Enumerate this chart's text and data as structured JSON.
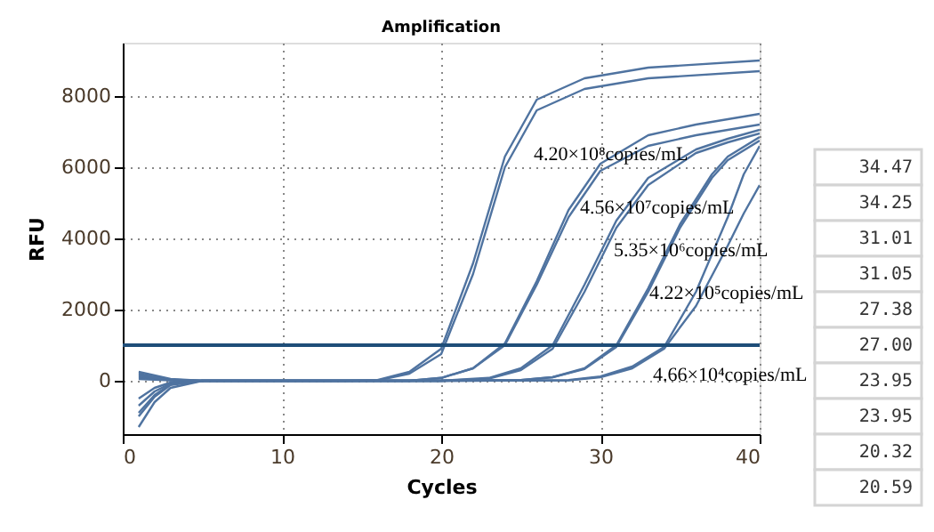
{
  "chart_data": {
    "type": "line",
    "title": "Amplification",
    "xlabel": "Cycles",
    "ylabel": "RFU",
    "xlim": [
      0,
      40
    ],
    "xticks": [
      0,
      10,
      20,
      30,
      40
    ],
    "ylim": [
      -1500,
      9500
    ],
    "yticks": [
      0,
      2000,
      4000,
      6000,
      8000
    ],
    "grid": true,
    "legend": false,
    "line_style": "solid",
    "marker": "none",
    "series": [
      {
        "color": "#4f73a0",
        "x": [
          1,
          2,
          3,
          5,
          10,
          14,
          16,
          18,
          20,
          22,
          24,
          26,
          29,
          33,
          40
        ],
        "values": [
          -1300,
          -600,
          -200,
          0,
          0,
          0,
          20,
          250,
          900,
          3300,
          6300,
          7900,
          8500,
          8800,
          9000
        ]
      },
      {
        "color": "#4f73a0",
        "x": [
          1,
          2,
          3,
          5,
          10,
          14,
          16,
          18,
          20,
          22,
          24,
          26,
          29,
          33,
          40
        ],
        "values": [
          250,
          150,
          50,
          0,
          0,
          0,
          10,
          200,
          750,
          3000,
          6000,
          7600,
          8200,
          8500,
          8700
        ]
      },
      {
        "color": "#4f73a0",
        "x": [
          1,
          2,
          3,
          5,
          10,
          18,
          20,
          22,
          24,
          26,
          28,
          30,
          33,
          36,
          40
        ],
        "values": [
          200,
          100,
          30,
          0,
          0,
          0,
          80,
          350,
          1050,
          2800,
          4800,
          6100,
          6900,
          7200,
          7500
        ]
      },
      {
        "color": "#4f73a0",
        "x": [
          1,
          2,
          3,
          5,
          10,
          18,
          20,
          22,
          24,
          26,
          28,
          30,
          33,
          36,
          40
        ],
        "values": [
          -900,
          -400,
          -100,
          0,
          0,
          0,
          80,
          350,
          1000,
          2700,
          4600,
          5900,
          6600,
          6900,
          7200
        ]
      },
      {
        "color": "#4f73a0",
        "x": [
          1,
          2,
          3,
          5,
          10,
          20,
          23,
          25,
          27,
          29,
          31,
          33,
          36,
          38,
          40
        ],
        "values": [
          -700,
          -300,
          -80,
          0,
          0,
          0,
          80,
          350,
          1000,
          2700,
          4500,
          5700,
          6500,
          6800,
          7050
        ]
      },
      {
        "color": "#4f73a0",
        "x": [
          1,
          2,
          3,
          5,
          10,
          20,
          23,
          25,
          27,
          29,
          31,
          33,
          36,
          38,
          40
        ],
        "values": [
          100,
          60,
          20,
          0,
          0,
          0,
          60,
          300,
          900,
          2500,
          4300,
          5500,
          6400,
          6700,
          6950
        ]
      },
      {
        "color": "#4f73a0",
        "x": [
          1,
          2,
          3,
          5,
          10,
          20,
          25,
          27,
          29,
          31,
          33,
          35,
          37,
          38,
          40
        ],
        "values": [
          -500,
          -200,
          -50,
          0,
          0,
          0,
          20,
          100,
          350,
          1000,
          2600,
          4400,
          5800,
          6300,
          6850
        ]
      },
      {
        "color": "#4f73a0",
        "x": [
          1,
          2,
          3,
          5,
          10,
          20,
          25,
          27,
          29,
          31,
          33,
          35,
          37,
          38,
          40
        ],
        "values": [
          150,
          80,
          20,
          0,
          0,
          0,
          20,
          100,
          330,
          950,
          2500,
          4300,
          5700,
          6200,
          6750
        ]
      },
      {
        "color": "#4f73a0",
        "x": [
          1,
          2,
          3,
          5,
          10,
          20,
          28,
          30,
          32,
          34,
          36,
          38,
          39,
          40
        ],
        "values": [
          -1000,
          -450,
          -120,
          0,
          0,
          0,
          20,
          120,
          400,
          950,
          2500,
          4600,
          5800,
          6600
        ]
      },
      {
        "color": "#4f73a0",
        "x": [
          1,
          2,
          3,
          5,
          10,
          20,
          28,
          30,
          32,
          34,
          36,
          38,
          39,
          40
        ],
        "values": [
          50,
          30,
          10,
          0,
          0,
          0,
          10,
          100,
          350,
          900,
          2100,
          3800,
          4700,
          5500
        ]
      }
    ],
    "ref_lines": [
      {
        "axis": "y",
        "value": 1000,
        "color": "#1f4e79",
        "line_style": "solid"
      }
    ],
    "annotations": [
      "4.20×10⁸copies/mL",
      "4.56×10⁷copies/mL",
      "5.35×10⁶copies/mL",
      "4.22×10⁵copies/mL",
      "4.66×10⁴copies/mL",
      "34.47",
      "34.25",
      "31.01",
      "31.05",
      "27.38",
      "27.00",
      "23.95",
      "23.95",
      "20.32",
      "20.59"
    ]
  }
}
